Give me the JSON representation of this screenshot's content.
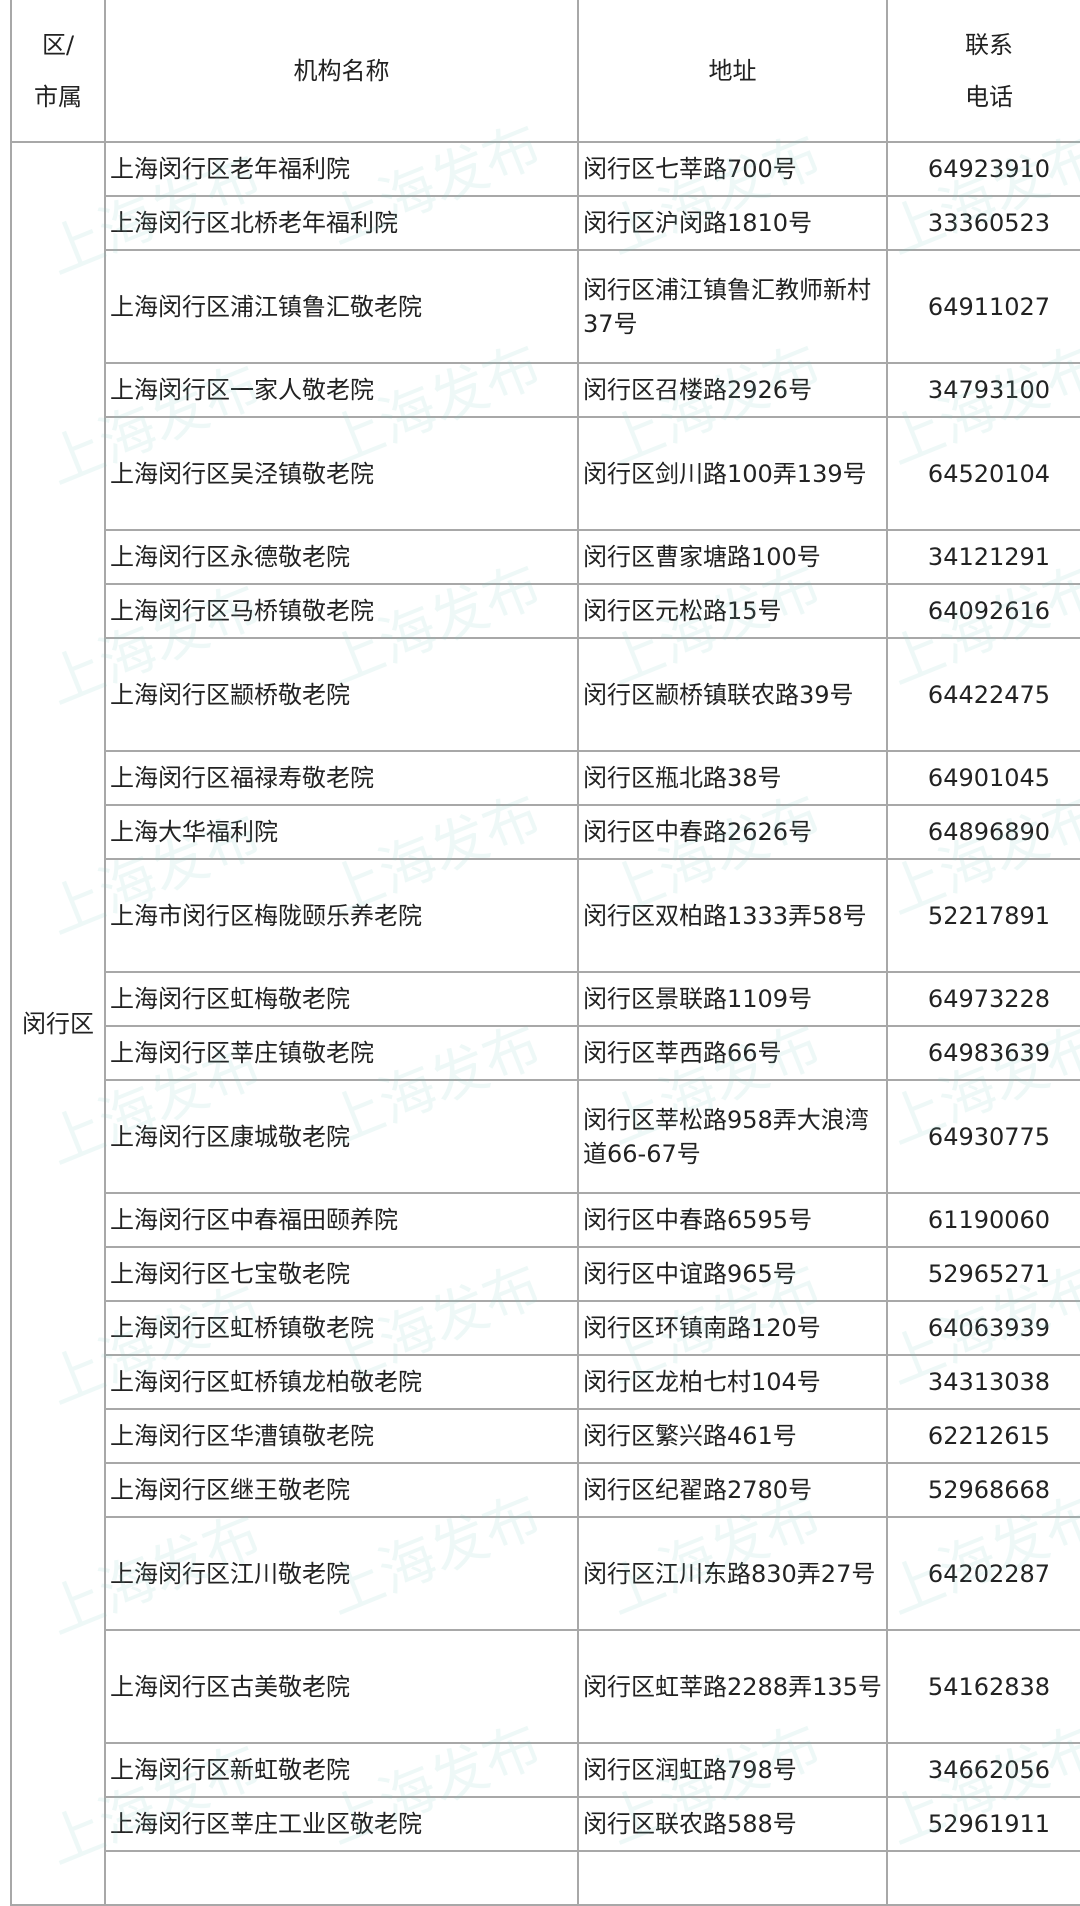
{
  "headers": {
    "district": "区/\n市属",
    "name": "机构名称",
    "address": "地址",
    "phone": "联系\n电话"
  },
  "district": "闵行区",
  "watermark": "上海发布",
  "rows": [
    {
      "name": "上海闵行区老年福利院",
      "address": "闵行区七莘路700号",
      "phone": "64923910"
    },
    {
      "name": "上海闵行区北桥老年福利院",
      "address": "闵行区沪闵路1810号",
      "phone": "33360523"
    },
    {
      "name": "上海闵行区浦江镇鲁汇敬老院",
      "address": "闵行区浦江镇鲁汇教师新村37号",
      "phone": "64911027"
    },
    {
      "name": "上海闵行区一家人敬老院",
      "address": "闵行区召楼路2926号",
      "phone": "34793100"
    },
    {
      "name": "上海闵行区吴泾镇敬老院",
      "address": "闵行区剑川路100弄139号",
      "phone": "64520104"
    },
    {
      "name": "上海闵行区永德敬老院",
      "address": "闵行区曹家塘路100号",
      "phone": "34121291"
    },
    {
      "name": "上海闵行区马桥镇敬老院",
      "address": "闵行区元松路15号",
      "phone": "64092616"
    },
    {
      "name": "上海闵行区颛桥敬老院",
      "address": "闵行区颛桥镇联农路39号",
      "phone": "64422475"
    },
    {
      "name": "上海闵行区福禄寿敬老院",
      "address": "闵行区瓶北路38号",
      "phone": "64901045"
    },
    {
      "name": "上海大华福利院",
      "address": "闵行区中春路2626号",
      "phone": "64896890"
    },
    {
      "name": "上海市闵行区梅陇颐乐养老院",
      "address": "闵行区双柏路1333弄58号",
      "phone": "52217891"
    },
    {
      "name": "上海闵行区虹梅敬老院",
      "address": "闵行区景联路1109号",
      "phone": "64973228"
    },
    {
      "name": "上海闵行区莘庄镇敬老院",
      "address": "闵行区莘西路66号",
      "phone": "64983639"
    },
    {
      "name": "上海闵行区康城敬老院",
      "address": "闵行区莘松路958弄大浪湾道66-67号",
      "phone": "64930775"
    },
    {
      "name": "上海闵行区中春福田颐养院",
      "address": "闵行区中春路6595号",
      "phone": "61190060"
    },
    {
      "name": "上海闵行区七宝敬老院",
      "address": "闵行区中谊路965号",
      "phone": "52965271"
    },
    {
      "name": "上海闵行区虹桥镇敬老院",
      "address": "闵行区环镇南路120号",
      "phone": "64063939"
    },
    {
      "name": "上海闵行区虹桥镇龙柏敬老院",
      "address": "闵行区龙柏七村104号",
      "phone": "34313038"
    },
    {
      "name": "上海闵行区华漕镇敬老院",
      "address": "闵行区繁兴路461号",
      "phone": "62212615"
    },
    {
      "name": "上海闵行区继王敬老院",
      "address": "闵行区纪翟路2780号",
      "phone": "52968668"
    },
    {
      "name": "上海闵行区江川敬老院",
      "address": "闵行区江川东路830弄27号",
      "phone": "64202287"
    },
    {
      "name": "上海闵行区古美敬老院",
      "address": "闵行区虹莘路2288弄135号",
      "phone": "54162838"
    },
    {
      "name": "上海闵行区新虹敬老院",
      "address": "闵行区润虹路798号",
      "phone": "34662056"
    },
    {
      "name": "上海闵行区莘庄工业区敬老院",
      "address": "闵行区联农路588号",
      "phone": "52961911"
    }
  ]
}
